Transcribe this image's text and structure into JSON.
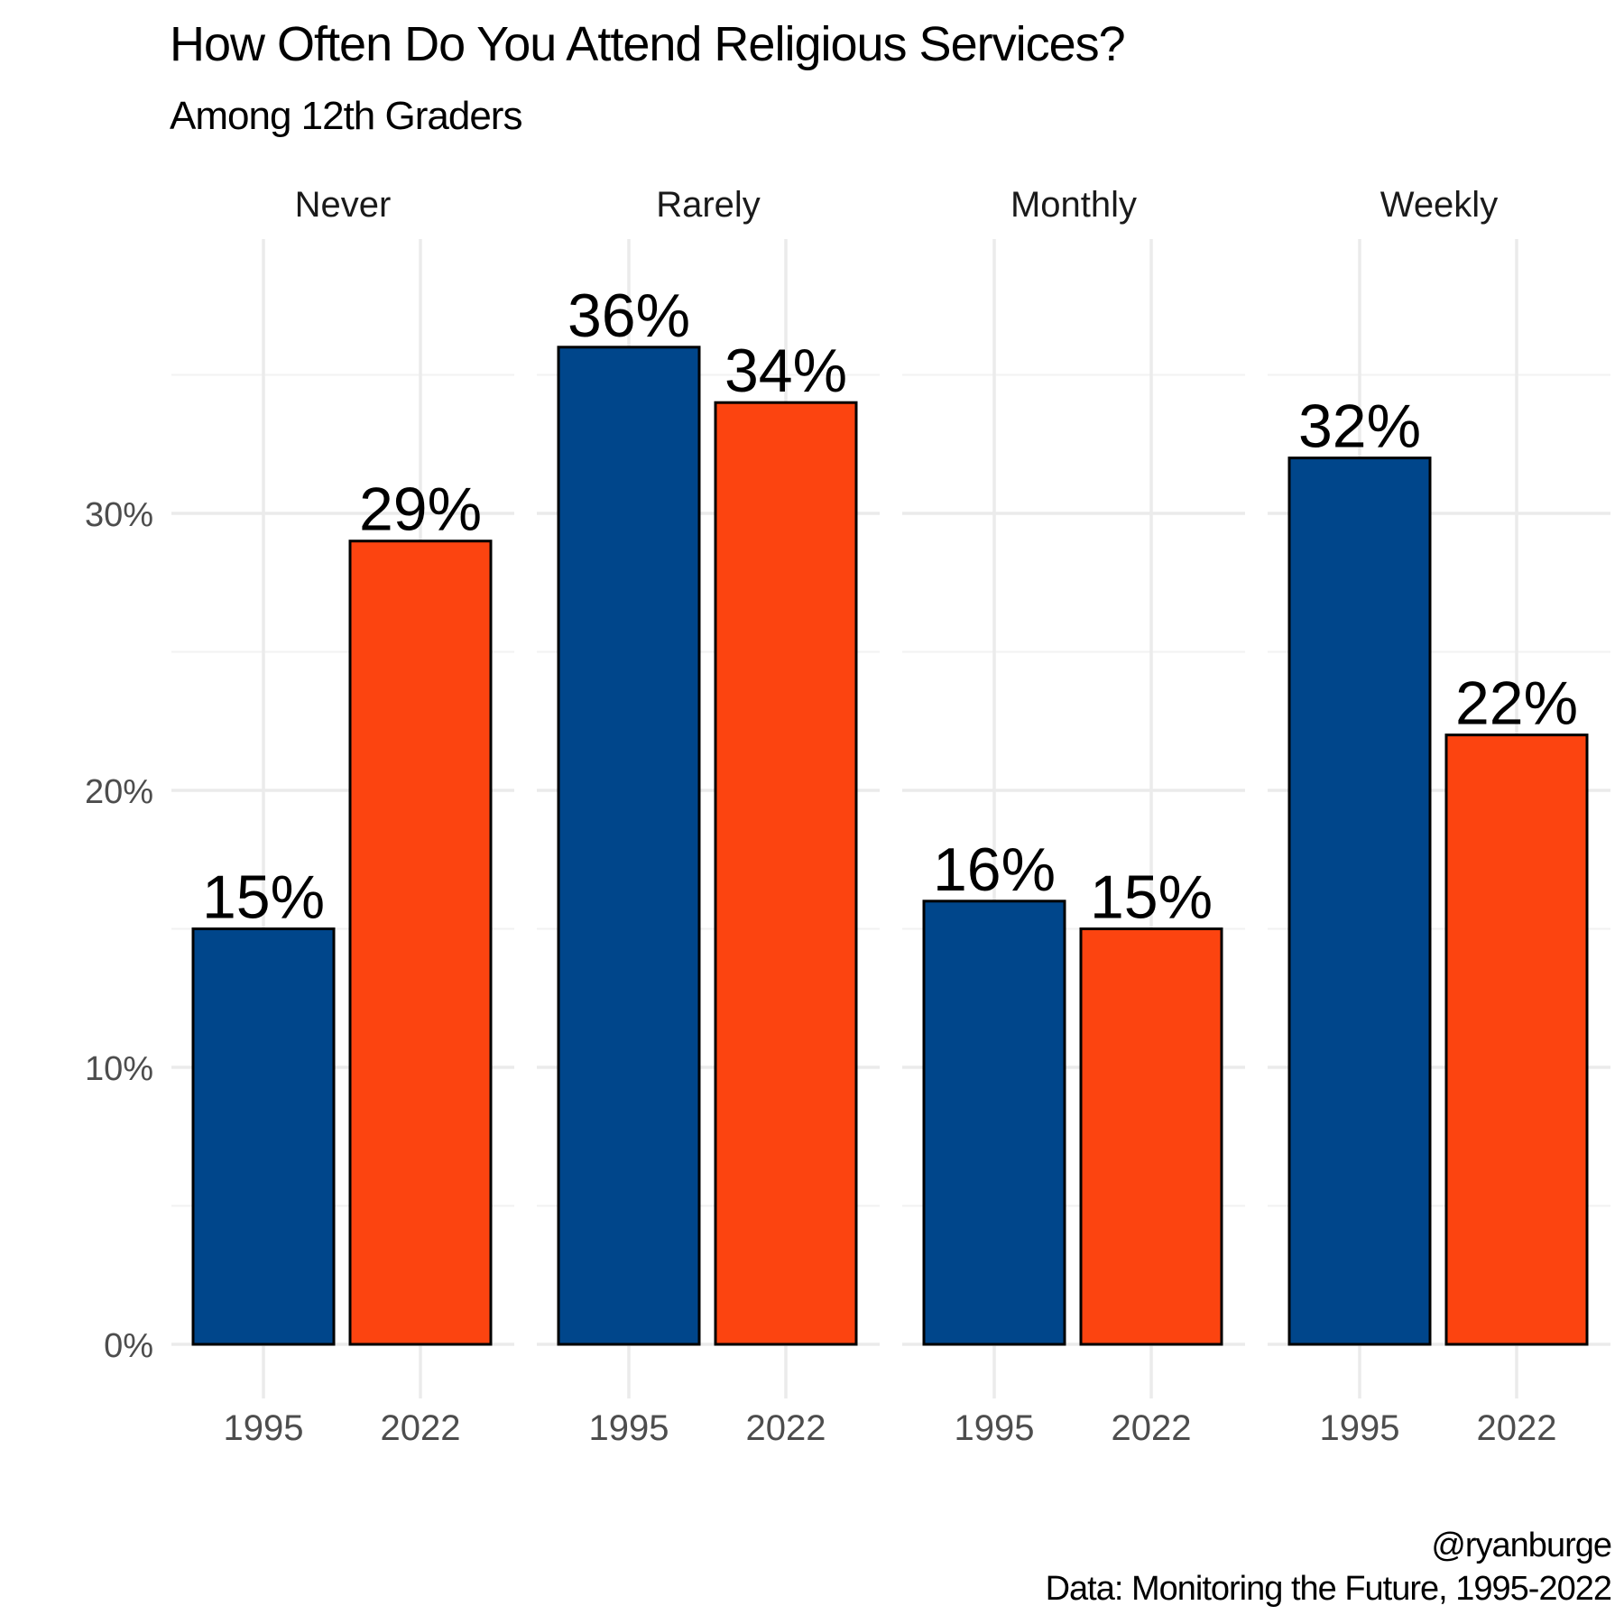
{
  "title": "How Often Do You Attend Religious Services?",
  "subtitle": "Among 12th Graders",
  "caption_handle": "@ryanburge",
  "caption_source": "Data: Monitoring the Future, 1995-2022",
  "colors": {
    "1995": "#00468b",
    "2022": "#fc4410"
  },
  "chart_data": {
    "type": "bar",
    "facets": [
      "Never",
      "Rarely",
      "Monthly",
      "Weekly"
    ],
    "x_categories": [
      "1995",
      "2022"
    ],
    "series": [
      {
        "name": "1995",
        "values": [
          15,
          36,
          16,
          32
        ],
        "labels": [
          "15%",
          "36%",
          "16%",
          "32%"
        ]
      },
      {
        "name": "2022",
        "values": [
          29,
          34,
          15,
          22
        ],
        "labels": [
          "29%",
          "34%",
          "15%",
          "22%"
        ]
      }
    ],
    "y_ticks": [
      0,
      10,
      20,
      30
    ],
    "y_tick_labels": [
      "0%",
      "10%",
      "20%",
      "30%"
    ],
    "ylim": [
      0,
      40
    ],
    "grid": true,
    "legend": "none"
  }
}
